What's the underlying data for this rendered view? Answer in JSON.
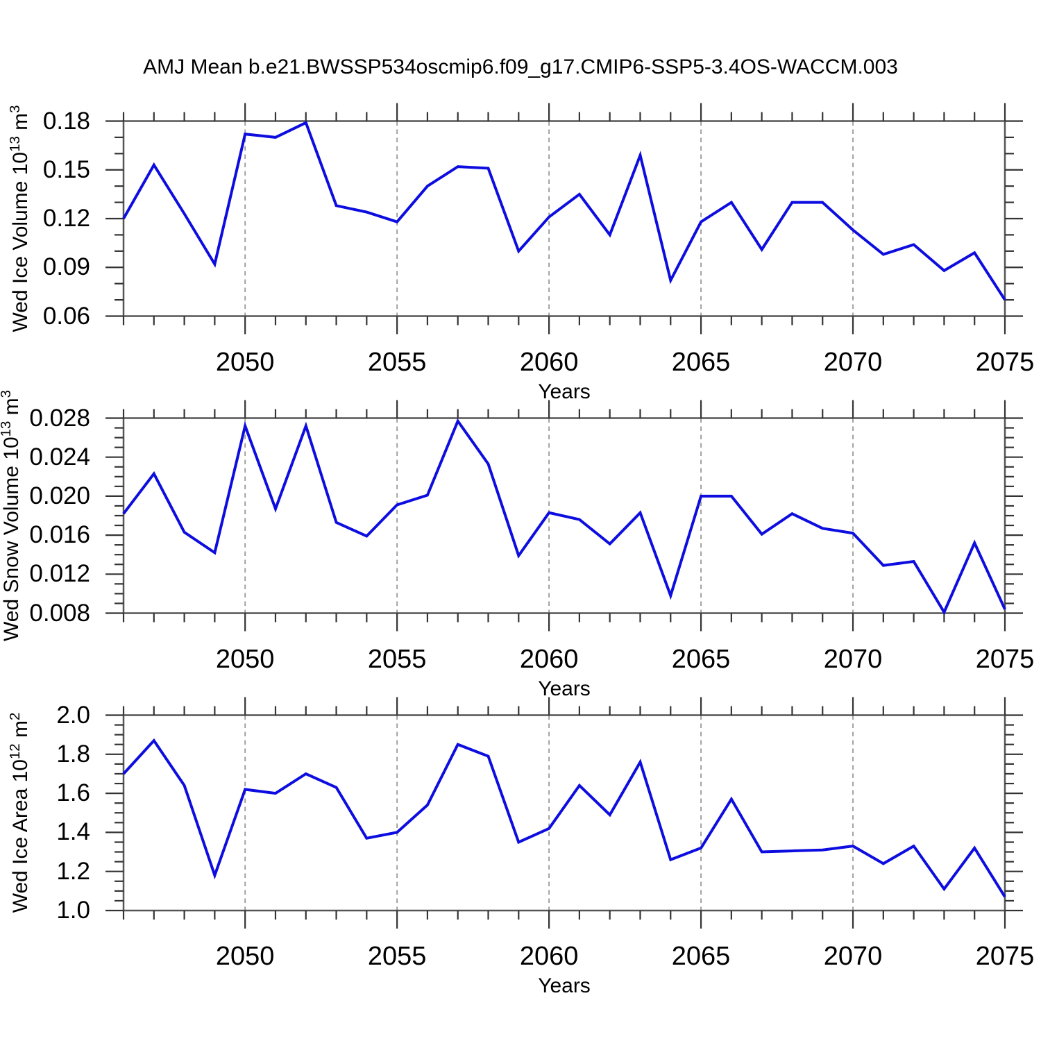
{
  "title": "AMJ Mean b.e21.BWSSP534oscmip6.f09_g17.CMIP6-SSP5-3.4OS-WACCM.003",
  "style": {
    "line_color": "#0d0de0",
    "grid_color": "#9a9a9a",
    "axis_color": "#555555",
    "tick_color": "#333333",
    "text_color": "#000000",
    "background": "#ffffff"
  },
  "chart_data": [
    {
      "type": "line",
      "ylabel_parts": [
        {
          "t": "Wed Ice Volume 10"
        },
        {
          "t": "13",
          "sup": true
        },
        {
          "t": " m"
        },
        {
          "t": "3",
          "sup": true
        }
      ],
      "xlabel": "Years",
      "x": [
        2046,
        2047,
        2048,
        2049,
        2050,
        2051,
        2052,
        2053,
        2054,
        2055,
        2056,
        2057,
        2058,
        2059,
        2060,
        2061,
        2062,
        2063,
        2064,
        2065,
        2066,
        2067,
        2068,
        2069,
        2070,
        2071,
        2072,
        2073,
        2074,
        2075
      ],
      "values": [
        0.12,
        0.153,
        0.123,
        0.092,
        0.172,
        0.17,
        0.179,
        0.128,
        0.124,
        0.118,
        0.14,
        0.152,
        0.151,
        0.1,
        0.121,
        0.135,
        0.11,
        0.159,
        0.082,
        0.118,
        0.13,
        0.101,
        0.13,
        0.13,
        0.113,
        0.098,
        0.104,
        0.088,
        0.099,
        0.07
      ],
      "xlim": [
        2046,
        2075
      ],
      "ylim": [
        0.06,
        0.18
      ],
      "xticks": [
        2050,
        2055,
        2060,
        2065,
        2070,
        2075
      ],
      "xtick_labels": [
        "2050",
        "2055",
        "2060",
        "2065",
        "2070",
        "2075"
      ],
      "x_minor_step": 1,
      "yticks": [
        0.06,
        0.09,
        0.12,
        0.15,
        0.18
      ],
      "ytick_labels": [
        "0.06",
        "0.09",
        "0.12",
        "0.15",
        "0.18"
      ],
      "y_minor_step": 0.01,
      "grid_x": [
        2050,
        2055,
        2060,
        2065,
        2070
      ],
      "grid": "vertical-dashed",
      "legend": "none"
    },
    {
      "type": "line",
      "ylabel_parts": [
        {
          "t": "Wed Snow Volume 10"
        },
        {
          "t": "13",
          "sup": true
        },
        {
          "t": " m"
        },
        {
          "t": "3",
          "sup": true
        }
      ],
      "xlabel": "Years",
      "x": [
        2046,
        2047,
        2048,
        2049,
        2050,
        2051,
        2052,
        2053,
        2054,
        2055,
        2056,
        2057,
        2058,
        2059,
        2060,
        2061,
        2062,
        2063,
        2064,
        2065,
        2066,
        2067,
        2068,
        2069,
        2070,
        2071,
        2072,
        2073,
        2074,
        2075
      ],
      "values": [
        0.0182,
        0.0223,
        0.0163,
        0.0142,
        0.0272,
        0.0187,
        0.0272,
        0.0173,
        0.0159,
        0.0191,
        0.0201,
        0.0277,
        0.0233,
        0.0139,
        0.0183,
        0.0176,
        0.0151,
        0.0183,
        0.0098,
        0.02,
        0.02,
        0.0161,
        0.0182,
        0.0167,
        0.0162,
        0.0129,
        0.0133,
        0.0081,
        0.0152,
        0.0084
      ],
      "xlim": [
        2046,
        2075
      ],
      "ylim": [
        0.008,
        0.028
      ],
      "xticks": [
        2050,
        2055,
        2060,
        2065,
        2070,
        2075
      ],
      "xtick_labels": [
        "2050",
        "2055",
        "2060",
        "2065",
        "2070",
        "2075"
      ],
      "x_minor_step": 1,
      "yticks": [
        0.008,
        0.012,
        0.016,
        0.02,
        0.024,
        0.028
      ],
      "ytick_labels": [
        "0.008",
        "0.012",
        "0.016",
        "0.020",
        "0.024",
        "0.028"
      ],
      "y_minor_step": 0.001,
      "grid_x": [
        2050,
        2055,
        2060,
        2065,
        2070
      ],
      "grid": "vertical-dashed",
      "legend": "none"
    },
    {
      "type": "line",
      "ylabel_parts": [
        {
          "t": "Wed Ice Area 10"
        },
        {
          "t": "12",
          "sup": true
        },
        {
          "t": " m"
        },
        {
          "t": "2",
          "sup": true
        }
      ],
      "xlabel": "Years",
      "x": [
        2046,
        2047,
        2048,
        2049,
        2050,
        2051,
        2052,
        2053,
        2054,
        2055,
        2056,
        2057,
        2058,
        2059,
        2060,
        2061,
        2062,
        2063,
        2064,
        2065,
        2066,
        2067,
        2068,
        2069,
        2070,
        2071,
        2072,
        2073,
        2074,
        2075
      ],
      "values": [
        1.7,
        1.87,
        1.64,
        1.18,
        1.62,
        1.6,
        1.7,
        1.63,
        1.37,
        1.4,
        1.54,
        1.85,
        1.79,
        1.35,
        1.42,
        1.64,
        1.49,
        1.76,
        1.26,
        1.32,
        1.57,
        1.3,
        1.305,
        1.31,
        1.33,
        1.24,
        1.33,
        1.11,
        1.32,
        1.07
      ],
      "xlim": [
        2046,
        2075
      ],
      "ylim": [
        1.0,
        2.0
      ],
      "xticks": [
        2050,
        2055,
        2060,
        2065,
        2070,
        2075
      ],
      "xtick_labels": [
        "2050",
        "2055",
        "2060",
        "2065",
        "2070",
        "2075"
      ],
      "x_minor_step": 0.05,
      "yticks": [
        1.0,
        1.2,
        1.4,
        1.6,
        1.8,
        2.0
      ],
      "ytick_labels": [
        "1.0",
        "1.2",
        "1.4",
        "1.6",
        "1.8",
        "2.0"
      ],
      "y_minor_step": 0.05,
      "grid_x": [
        2050,
        2055,
        2060,
        2065,
        2070
      ],
      "grid": "vertical-dashed",
      "legend": "none"
    }
  ]
}
